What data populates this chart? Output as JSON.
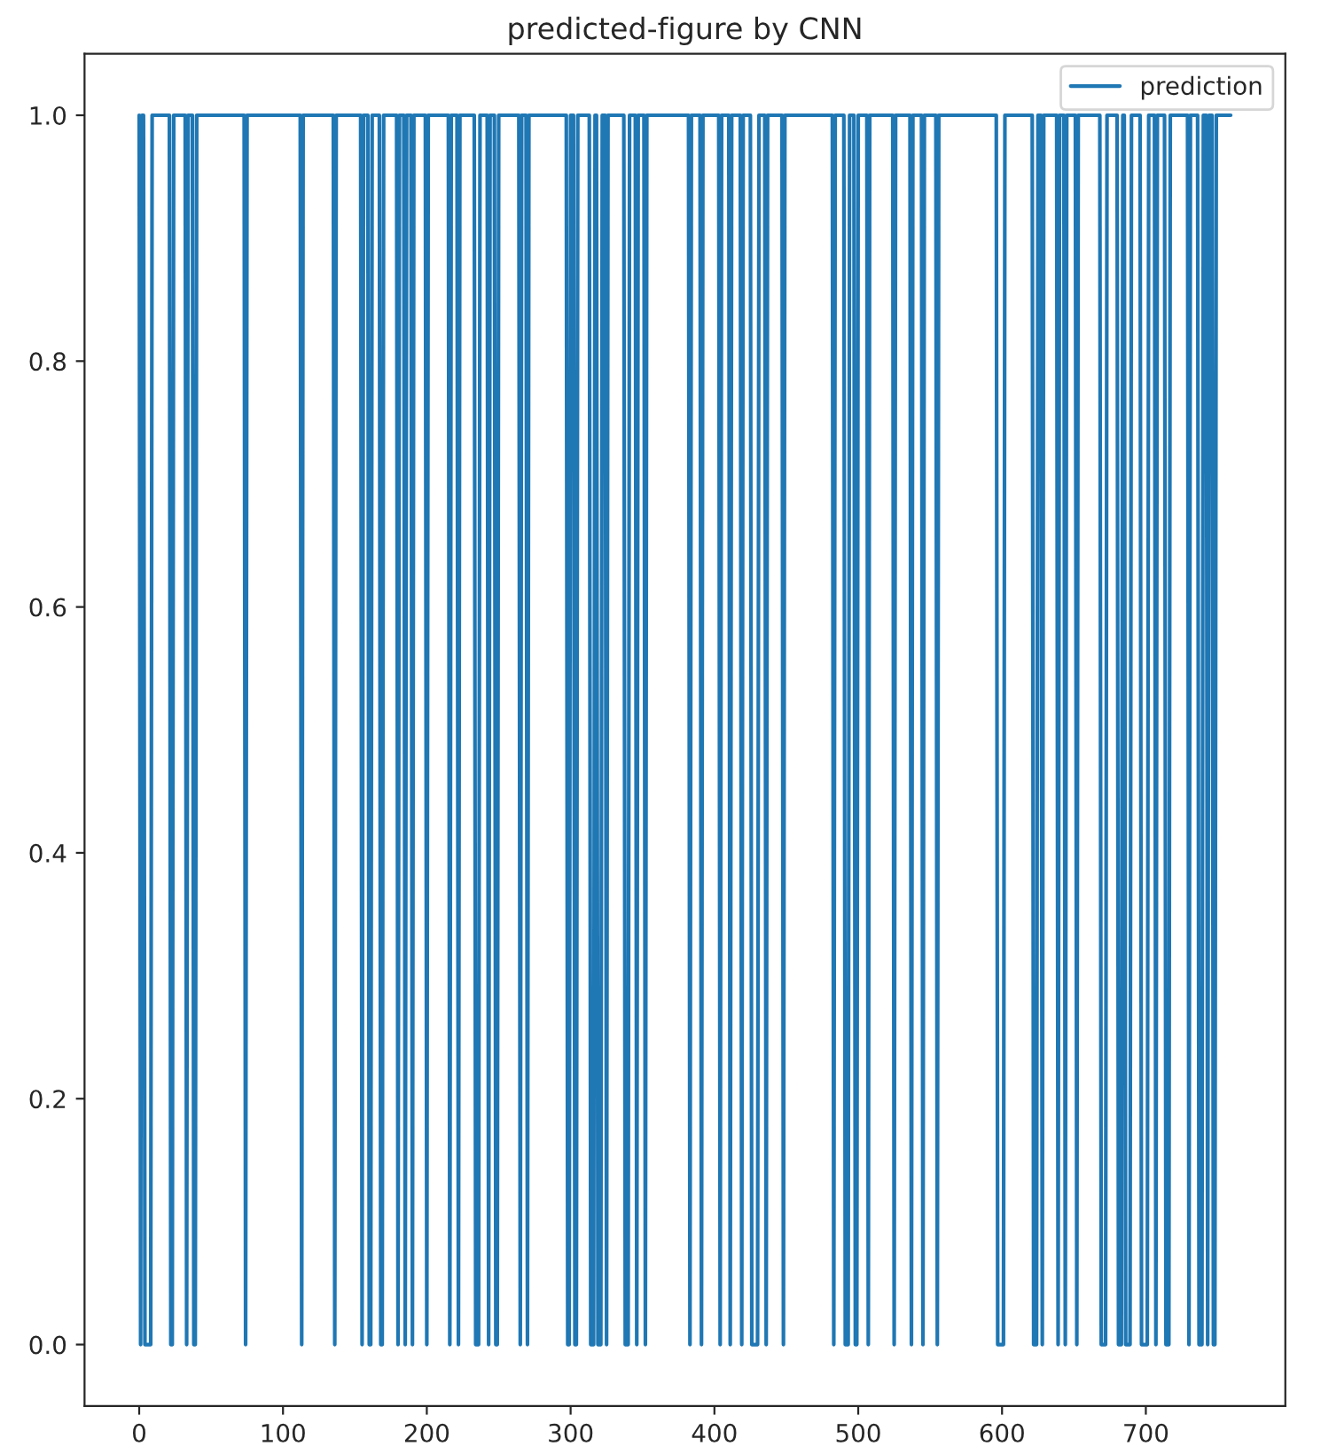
{
  "chart_data": {
    "type": "line",
    "title": "predicted-figure by CNN",
    "x": [
      0,
      1,
      2,
      3,
      4,
      8,
      9,
      21,
      22,
      23,
      24,
      32,
      33,
      34,
      37,
      38,
      39,
      40,
      73,
      74,
      75,
      112,
      113,
      114,
      135,
      136,
      137,
      154,
      155,
      156,
      159,
      160,
      161,
      162,
      167,
      168,
      169,
      170,
      179,
      180,
      181,
      184,
      185,
      186,
      189,
      190,
      191,
      199,
      200,
      201,
      215,
      216,
      217,
      221,
      222,
      223,
      233,
      234,
      236,
      237,
      242,
      243,
      244,
      247,
      248,
      249,
      250,
      264,
      265,
      266,
      269,
      270,
      271,
      297,
      298,
      299,
      300,
      302,
      303,
      304,
      305,
      313,
      314,
      316,
      317,
      318,
      319,
      321,
      322,
      324,
      325,
      326,
      337,
      338,
      340,
      341,
      345,
      346,
      347,
      351,
      352,
      353,
      382,
      383,
      384,
      390,
      391,
      392,
      403,
      404,
      405,
      410,
      411,
      412,
      418,
      419,
      420,
      425,
      426,
      430,
      431,
      435,
      436,
      437,
      447,
      448,
      449,
      482,
      483,
      484,
      490,
      491,
      493,
      494,
      497,
      498,
      499,
      500,
      506,
      507,
      508,
      524,
      525,
      526,
      536,
      537,
      538,
      544,
      545,
      546,
      554,
      555,
      556,
      596,
      597,
      601,
      602,
      621,
      622,
      624,
      625,
      627,
      628,
      629,
      638,
      639,
      640,
      643,
      644,
      645,
      651,
      652,
      653,
      668,
      669,
      672,
      673,
      680,
      681,
      683,
      684,
      685,
      686,
      689,
      690,
      696,
      697,
      701,
      702,
      706,
      707,
      708,
      713,
      714,
      716,
      717,
      729,
      730,
      731,
      736,
      737,
      739,
      740,
      742,
      743,
      744,
      746,
      747,
      748,
      749,
      759
    ],
    "series": [
      {
        "name": "prediction",
        "color": "#1f77b4",
        "values": [
          1,
          0,
          1,
          1,
          0,
          0,
          1,
          1,
          0,
          0,
          1,
          1,
          0,
          1,
          1,
          0,
          0,
          1,
          1,
          0,
          1,
          1,
          0,
          1,
          1,
          0,
          1,
          1,
          0,
          1,
          1,
          0,
          0,
          1,
          1,
          0,
          0,
          1,
          1,
          0,
          1,
          1,
          0,
          1,
          1,
          0,
          1,
          1,
          0,
          1,
          1,
          0,
          1,
          1,
          0,
          1,
          1,
          0,
          0,
          1,
          1,
          0,
          1,
          1,
          0,
          0,
          1,
          1,
          0,
          1,
          1,
          0,
          1,
          1,
          0,
          0,
          1,
          1,
          0,
          0,
          1,
          1,
          0,
          0,
          1,
          1,
          0,
          0,
          1,
          1,
          0,
          1,
          1,
          0,
          0,
          1,
          1,
          0,
          1,
          1,
          0,
          1,
          1,
          0,
          1,
          1,
          0,
          1,
          1,
          0,
          1,
          1,
          0,
          1,
          1,
          0,
          1,
          1,
          0,
          0,
          1,
          1,
          0,
          1,
          1,
          0,
          1,
          1,
          0,
          1,
          1,
          0,
          0,
          1,
          1,
          0,
          0,
          1,
          1,
          0,
          1,
          1,
          0,
          1,
          1,
          0,
          1,
          1,
          0,
          1,
          1,
          0,
          1,
          1,
          0,
          0,
          1,
          1,
          0,
          0,
          1,
          1,
          0,
          1,
          1,
          0,
          1,
          1,
          0,
          1,
          1,
          0,
          1,
          1,
          0,
          0,
          1,
          1,
          0,
          0,
          1,
          1,
          0,
          0,
          1,
          1,
          0,
          0,
          1,
          1,
          0,
          1,
          1,
          0,
          0,
          1,
          1,
          0,
          1,
          1,
          0,
          0,
          1,
          1,
          0,
          1,
          1,
          0,
          0,
          1,
          1
        ]
      }
    ],
    "xlim": [
      -38,
      797
    ],
    "xticks": [
      0,
      100,
      200,
      300,
      400,
      500,
      600,
      700
    ],
    "ylim": [
      -0.05,
      1.05
    ],
    "yticks": [
      {
        "value": 0,
        "label": "0.0"
      },
      {
        "value": 0.2,
        "label": "0.2"
      },
      {
        "value": 0.4,
        "label": "0.4"
      },
      {
        "value": 0.6,
        "label": "0.6"
      },
      {
        "value": 0.8,
        "label": "0.8"
      },
      {
        "value": 1,
        "label": "1.0"
      }
    ],
    "grid": false,
    "legend": "top right",
    "line_style": "solid",
    "marker": "none"
  }
}
